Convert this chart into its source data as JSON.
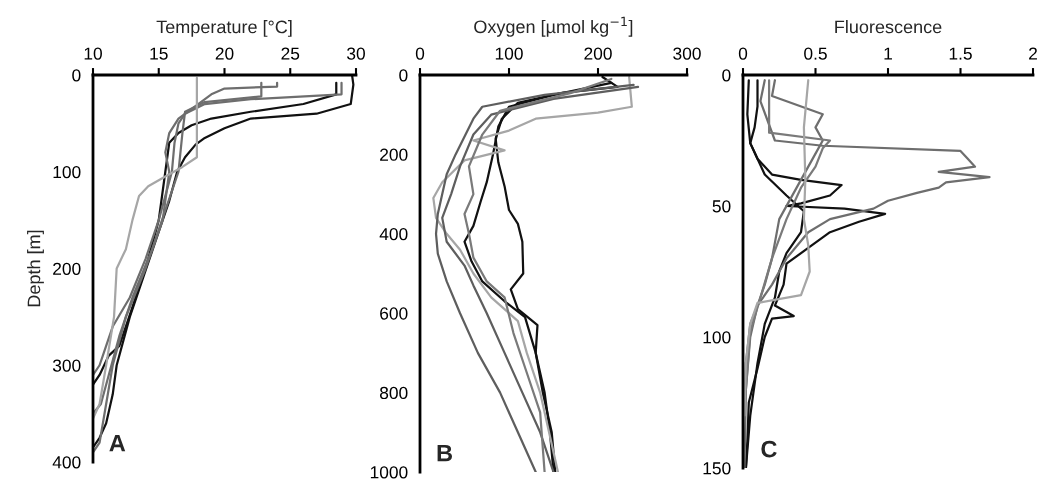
{
  "chart_data": [
    {
      "type": "line",
      "xlabel": "Temperature [°C]",
      "ylabel": "Depth [m]",
      "xlim": [
        10,
        30
      ],
      "xticks": [
        10,
        15,
        20,
        25,
        30
      ],
      "ylim": [
        400,
        0
      ],
      "yticks": [
        0,
        100,
        200,
        300,
        400
      ],
      "annotations": [
        "A"
      ],
      "series": [
        {
          "color": "#111111",
          "x": [
            29.7,
            29.8,
            29.6,
            27,
            22,
            20,
            18.5,
            17.8,
            17,
            16.4,
            15.8,
            14.8,
            13.8,
            12.8,
            11.8,
            11.5,
            11,
            10.5,
            10
          ],
          "values": [
            0,
            10,
            30,
            40,
            45,
            55,
            65,
            72,
            85,
            100,
            130,
            170,
            210,
            250,
            300,
            330,
            360,
            375,
            385
          ]
        },
        {
          "color": "#111111",
          "x": [
            28.5,
            28.5,
            26,
            22,
            19,
            17.5,
            16.5,
            15.8,
            15.5,
            15,
            14.2,
            13,
            12,
            11.2,
            10.5,
            10
          ],
          "values": [
            8,
            20,
            30,
            38,
            45,
            52,
            60,
            70,
            100,
            150,
            190,
            240,
            280,
            290,
            310,
            320
          ]
        },
        {
          "color": "#6e6e6e",
          "x": [
            28.9,
            28.9,
            22,
            18.5,
            17,
            16.5,
            16.2,
            16,
            15,
            14,
            12.8,
            11.5,
            11,
            10.5,
            10
          ],
          "values": [
            8,
            20,
            25,
            30,
            40,
            50,
            70,
            100,
            150,
            190,
            230,
            260,
            280,
            300,
            310
          ]
        },
        {
          "color": "#6e6e6e",
          "x": [
            22.8,
            22.8,
            18.5,
            17,
            16.8,
            16.5,
            15.5,
            14.5,
            13,
            12,
            11.2,
            10.6,
            10
          ],
          "values": [
            8,
            22,
            28,
            38,
            60,
            100,
            140,
            180,
            230,
            270,
            310,
            340,
            350
          ]
        },
        {
          "color": "#6e6e6e",
          "x": [
            24,
            24,
            20,
            19,
            18,
            16.5,
            15.8,
            15.5,
            15.8,
            15.3,
            14,
            12.5,
            11.5,
            11,
            10.5,
            10
          ],
          "values": [
            8,
            12,
            14,
            20,
            30,
            45,
            60,
            80,
            100,
            150,
            200,
            250,
            300,
            340,
            380,
            390
          ]
        },
        {
          "color": "#a6a6a6",
          "x": [
            17.9,
            17.9,
            16.8,
            15.5,
            14.2,
            13.5,
            13,
            12.5,
            11.8,
            11.6,
            11,
            10.5,
            10
          ],
          "values": [
            3,
            85,
            95,
            105,
            115,
            125,
            150,
            180,
            200,
            250,
            300,
            340,
            355
          ]
        }
      ]
    },
    {
      "type": "line",
      "xlabel": "Oxygen [µmol kg$^{−1}$]",
      "xlim": [
        0,
        300
      ],
      "xticks": [
        0,
        100,
        200,
        300
      ],
      "ylim": [
        1000,
        0
      ],
      "yticks": [
        0,
        200,
        400,
        600,
        800,
        1000
      ],
      "annotations": [
        "B"
      ],
      "series": [
        {
          "color": "#111111",
          "x": [
            205,
            222,
            160,
            110,
            92,
            85,
            88,
            95,
            100,
            110,
            115,
            116,
            102,
            110,
            132,
            130,
            138,
            148,
            152
          ],
          "values": [
            5,
            30,
            45,
            70,
            110,
            160,
            220,
            280,
            340,
            375,
            420,
            500,
            540,
            590,
            630,
            700,
            800,
            900,
            1000
          ]
        },
        {
          "color": "#111111",
          "x": [
            215,
            150,
            100,
            88,
            82,
            75,
            68,
            60,
            50,
            58,
            70,
            95,
            118,
            130,
            140,
            146,
            150
          ],
          "values": [
            20,
            50,
            80,
            130,
            200,
            270,
            320,
            380,
            420,
            470,
            520,
            570,
            610,
            700,
            800,
            900,
            1000
          ]
        },
        {
          "color": "#a6a6a6",
          "x": [
            235,
            238,
            200,
            130,
            100,
            60,
            95,
            50,
            25,
            15,
            18,
            30,
            45,
            60,
            80,
            110,
            120,
            135,
            145,
            155
          ],
          "values": [
            5,
            80,
            95,
            110,
            140,
            165,
            190,
            215,
            270,
            310,
            360,
            400,
            440,
            500,
            560,
            620,
            700,
            800,
            900,
            1000
          ]
        },
        {
          "color": "#5e5e5e",
          "x": [
            240,
            140,
            70,
            60,
            40,
            30,
            25,
            20,
            18,
            20,
            30,
            45,
            65,
            90,
            110,
            130
          ],
          "values": [
            25,
            50,
            80,
            110,
            200,
            250,
            300,
            350,
            400,
            450,
            520,
            600,
            700,
            800,
            900,
            1000
          ]
        },
        {
          "color": "#5e5e5e",
          "x": [
            245,
            150,
            80,
            60,
            45,
            35,
            25,
            30,
            50,
            60,
            75,
            95,
            115,
            135,
            150
          ],
          "values": [
            30,
            60,
            100,
            150,
            230,
            300,
            360,
            420,
            480,
            530,
            600,
            700,
            800,
            900,
            1000
          ]
        },
        {
          "color": "#7a7a7a",
          "x": [
            215,
            170,
            90,
            70,
            55,
            60,
            50,
            55,
            60,
            75,
            95,
            105,
            120,
            135,
            140
          ],
          "values": [
            10,
            45,
            90,
            150,
            230,
            300,
            350,
            400,
            460,
            520,
            560,
            650,
            750,
            850,
            1000
          ]
        }
      ]
    },
    {
      "type": "line",
      "xlabel": "Fluorescence",
      "xlim": [
        0,
        2
      ],
      "xticks": [
        0,
        0.5,
        1,
        1.5,
        2
      ],
      "ylim": [
        150,
        0
      ],
      "yticks": [
        0,
        50,
        100,
        150
      ],
      "annotations": [
        "C"
      ],
      "series": [
        {
          "color": "#111111",
          "x": [
            0.04,
            0.03,
            0.05,
            0.1,
            0.2,
            0.4,
            0.68,
            0.6,
            0.4,
            0.3,
            0.7,
            0.98,
            0.8,
            0.6,
            0.45,
            0.3,
            0.28,
            0.22,
            0.35,
            0.2,
            0.15,
            0.1,
            0.04,
            0.03,
            0.02
          ],
          "values": [
            2,
            15,
            26,
            32,
            38,
            40,
            42,
            46,
            49,
            50,
            51,
            53,
            56,
            60,
            66,
            72,
            80,
            88,
            92,
            93,
            100,
            112,
            125,
            140,
            150
          ]
        },
        {
          "color": "#111111",
          "x": [
            0.1,
            0.1,
            0.08,
            0.05,
            0.15,
            0.3,
            0.42,
            0.4,
            0.3,
            0.25,
            0.22,
            0.15,
            0.1,
            0.05,
            0.02
          ],
          "values": [
            2,
            12,
            20,
            26,
            38,
            46,
            52,
            60,
            68,
            75,
            85,
            95,
            110,
            130,
            150
          ]
        },
        {
          "color": "#6e6e6e",
          "x": [
            0.15,
            0.12,
            0.22,
            0.55,
            1.5,
            1.55,
            1.6,
            1.35,
            1.7,
            1.4,
            1.35,
            1.2,
            1.0,
            0.9,
            0.6,
            0.45,
            0.3,
            0.2,
            0.1,
            0.05,
            0.02,
            0.01
          ],
          "values": [
            2,
            10,
            25,
            27,
            29,
            32,
            35,
            37,
            39,
            41,
            43,
            45,
            48,
            51,
            55,
            60,
            70,
            80,
            88,
            100,
            120,
            150
          ]
        },
        {
          "color": "#6e6e6e",
          "x": [
            0.22,
            0.2,
            0.55,
            0.5,
            0.55,
            0.5,
            0.35,
            0.25,
            0.2,
            0.15,
            0.1,
            0.05,
            0.02,
            0.01
          ],
          "values": [
            2,
            8,
            15,
            20,
            25,
            30,
            45,
            55,
            70,
            80,
            88,
            95,
            110,
            130
          ]
        },
        {
          "color": "#7a7a7a",
          "x": [
            0.18,
            0.18,
            0.6,
            0.55,
            0.5,
            0.4,
            0.3,
            0.2,
            0.12,
            0.05,
            0.02
          ],
          "values": [
            2,
            22,
            25,
            28,
            35,
            43,
            55,
            70,
            85,
            98,
            120
          ]
        },
        {
          "color": "#a6a6a6",
          "x": [
            0.45,
            0.42,
            0.43,
            0.42,
            0.45,
            0.46,
            0.4,
            0.1,
            0.05,
            0.02,
            0.01
          ],
          "values": [
            2,
            20,
            40,
            55,
            65,
            75,
            84,
            87,
            95,
            110,
            130
          ]
        }
      ]
    }
  ]
}
